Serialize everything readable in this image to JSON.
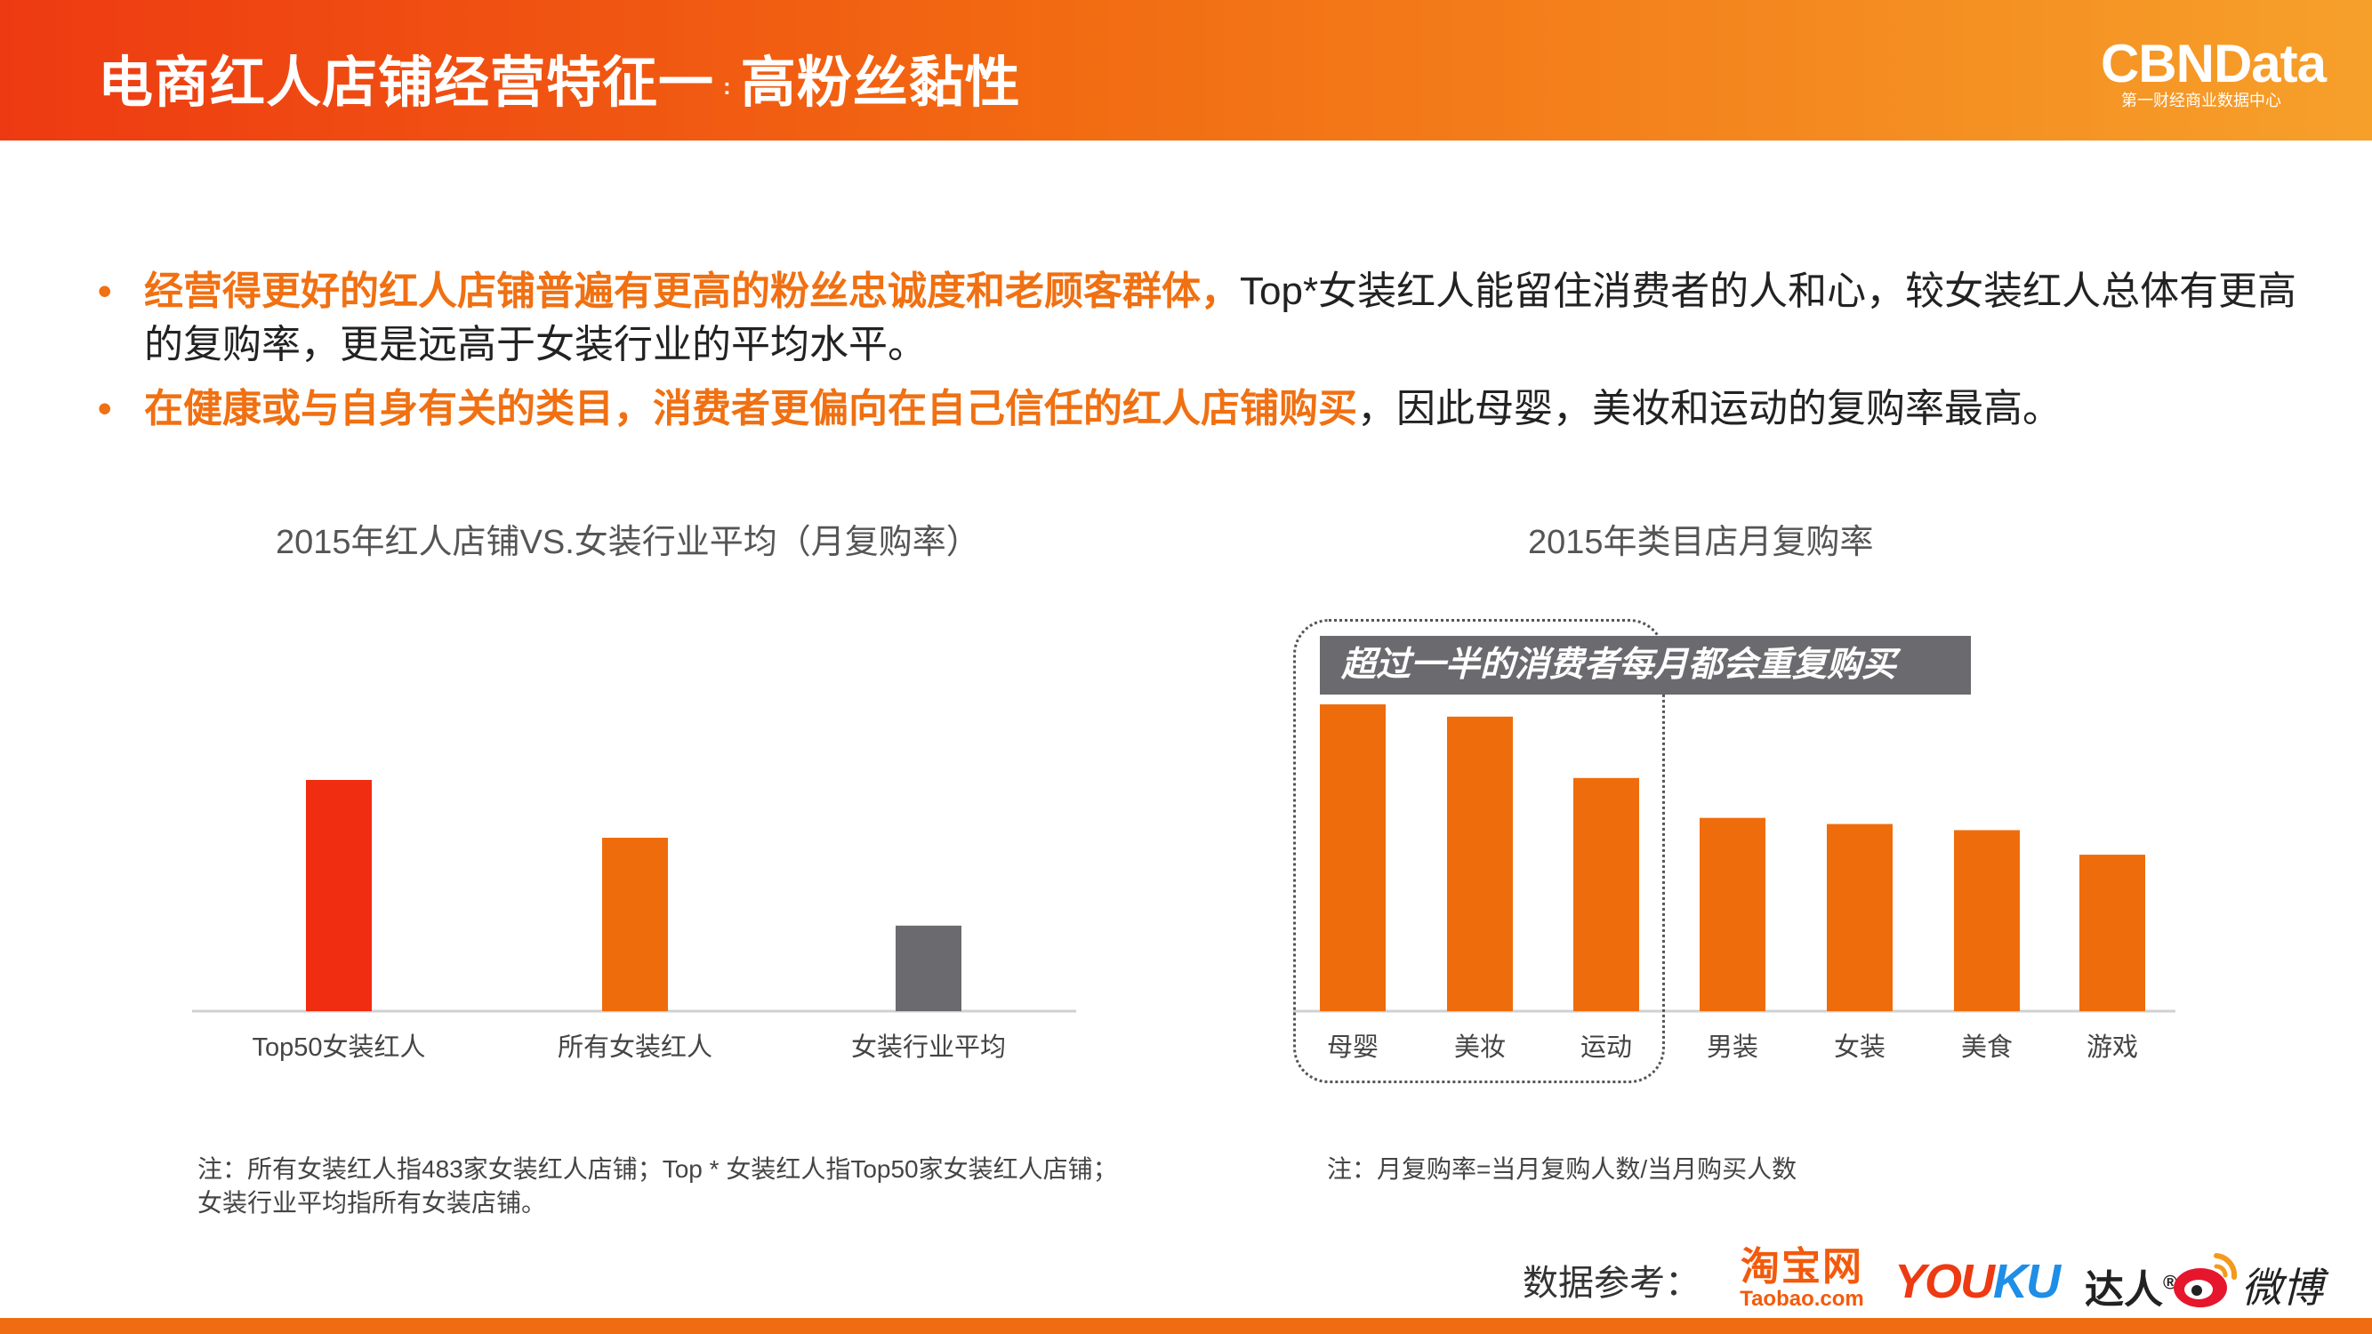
{
  "header": {
    "title_main": "电商红人店铺经营特征一",
    "title_sep": ":",
    "title_sub": "高粉丝黏性",
    "logo_name": "CBNData",
    "logo_sub": "第一财经商业数据中心"
  },
  "bullets": [
    {
      "marker": "•",
      "highlight": "经营得更好的红人店铺普遍有更高的粉丝忠诚度和老顾客群体，",
      "text": "Top*女装红人能留住消费者的人和心，较女装红人总体有更高的复购率，更是远高于女装行业的平均水平。"
    },
    {
      "marker": "•",
      "highlight": "在健康或与自身有关的类目，消费者更偏向在自己信任的红人店铺购买",
      "text": "，因此母婴，美妆和运动的复购率最高。"
    }
  ],
  "chart_data": [
    {
      "type": "bar",
      "title": "2015年红人店铺VS.女装行业平均（月复购率）",
      "categories": [
        "Top50女装红人",
        "所有女装红人",
        "女装行业平均"
      ],
      "values": [
        100,
        75,
        37
      ],
      "colors": [
        "#f02d10",
        "#ef6c0c",
        "#6b6a6e"
      ],
      "value_axis": "relative (no scale shown)",
      "ylim": [
        0,
        100
      ],
      "grid": false,
      "legend": "none",
      "note_lines": [
        "注：所有女装红人指483家女装红人店铺；Top * 女装红人指Top50家女装红人店铺；",
        "女装行业平均指所有女装店铺。"
      ]
    },
    {
      "type": "bar",
      "title": "2015年类目店月复购率",
      "categories": [
        "母婴",
        "美妆",
        "运动",
        "男装",
        "女装",
        "美食",
        "游戏"
      ],
      "values": [
        100,
        96,
        76,
        63,
        61,
        59,
        51
      ],
      "bar_color": "#ef6c0c",
      "value_axis": "relative (no scale shown)",
      "ylim": [
        0,
        100
      ],
      "grid": false,
      "legend": "none",
      "callout": "超过一半的消费者每月都会重复购买",
      "note_lines": [
        "注：月复购率=当月复购人数/当月购买人数"
      ]
    }
  ],
  "sources": {
    "label": "数据参考：",
    "taobao_cn": "淘宝网",
    "taobao_en": "Taobao.com",
    "youku_you": "YOU",
    "youku_ku": "KU",
    "daren": "达人",
    "daren_mark": "®",
    "weibo": "微博"
  }
}
